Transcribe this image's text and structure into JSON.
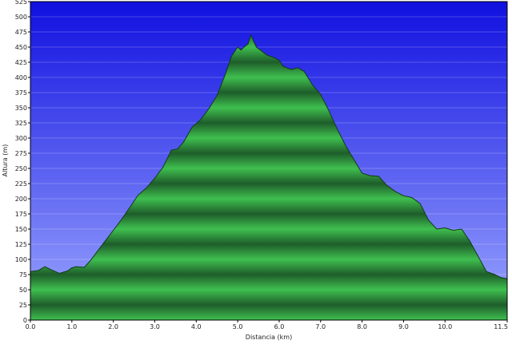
{
  "chart_data": {
    "type": "area",
    "title": "",
    "xlabel": "Distancia   (km)",
    "ylabel": "Altura (m)",
    "xlim": [
      0,
      11.5
    ],
    "ylim": [
      0,
      525
    ],
    "x_ticks": [
      0,
      1,
      2,
      3,
      4,
      5,
      6,
      7,
      8,
      9,
      10,
      11.5
    ],
    "x_tick_labels": [
      "0.0",
      "1.0",
      "2.0",
      "3.0",
      "4.0",
      "5.0",
      "6.0",
      "7.0",
      "8.0",
      "9.0",
      "10.0",
      "11.5"
    ],
    "y_ticks": [
      0,
      25,
      50,
      75,
      100,
      125,
      150,
      175,
      200,
      225,
      250,
      275,
      300,
      325,
      350,
      375,
      400,
      425,
      450,
      475,
      500,
      525
    ],
    "y_tick_labels": [
      "0",
      "25",
      "50",
      "75",
      "100",
      "125",
      "150",
      "175",
      "200",
      "225",
      "250",
      "275",
      "300",
      "325",
      "350",
      "375",
      "400",
      "425",
      "450",
      "475",
      "500",
      "525"
    ],
    "grid": true,
    "legend": "none",
    "background_gradient": {
      "top": "#1010e0",
      "bottom": "#9ca8ff"
    },
    "fill_colors": {
      "dark": "#1e5d2a",
      "light": "#3fbf4f",
      "outline": "#123a18"
    },
    "series": [
      {
        "x": [
          0,
          0.2,
          0.35,
          0.5,
          0.7,
          0.9,
          1.0,
          1.1,
          1.3,
          1.45,
          1.6,
          1.8,
          2.0,
          2.2,
          2.4,
          2.6,
          2.8,
          3.0,
          3.2,
          3.4,
          3.55,
          3.7,
          3.9,
          4.1,
          4.3,
          4.5,
          4.7,
          4.85,
          5.0,
          5.08,
          5.15,
          5.25,
          5.32,
          5.38,
          5.45,
          5.55,
          5.7,
          5.9,
          6.0,
          6.1,
          6.3,
          6.45,
          6.6,
          6.8,
          7.0,
          7.2,
          7.4,
          7.6,
          7.8,
          8.0,
          8.2,
          8.4,
          8.6,
          8.8,
          9.0,
          9.2,
          9.4,
          9.6,
          9.8,
          10.0,
          10.2,
          10.4,
          10.6,
          10.8,
          11.0,
          11.2,
          11.35,
          11.5
        ],
        "y": [
          80,
          82,
          88,
          83,
          77,
          81,
          86,
          88,
          87,
          98,
          112,
          130,
          148,
          166,
          186,
          206,
          218,
          234,
          252,
          280,
          282,
          294,
          318,
          330,
          348,
          370,
          405,
          435,
          450,
          445,
          450,
          455,
          470,
          460,
          450,
          445,
          437,
          432,
          428,
          418,
          413,
          416,
          410,
          388,
          372,
          345,
          315,
          288,
          265,
          242,
          238,
          237,
          222,
          212,
          205,
          202,
          192,
          165,
          150,
          152,
          148,
          150,
          130,
          105,
          80,
          75,
          70,
          68
        ]
      }
    ]
  }
}
